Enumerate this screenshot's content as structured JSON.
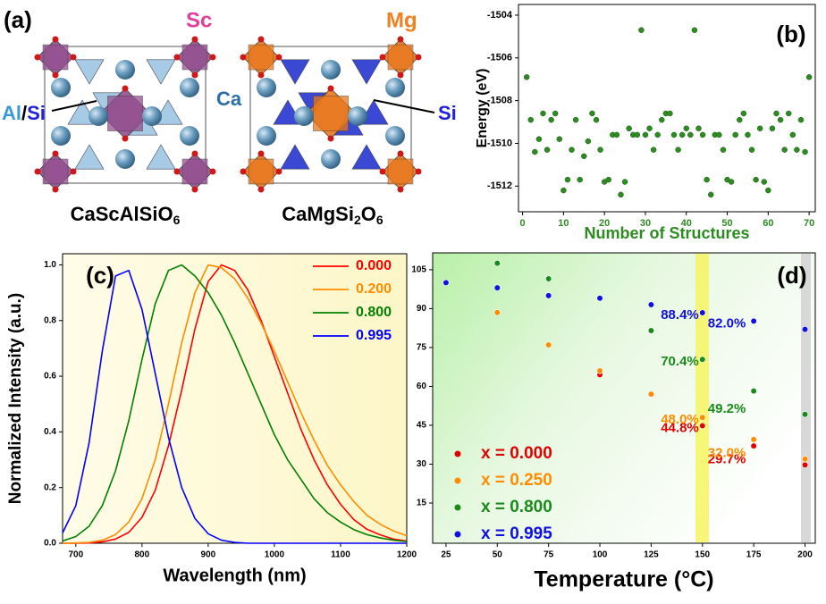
{
  "structures": {
    "label": "(a)",
    "atoms": [
      "Sc",
      "Mg",
      "Al",
      "/",
      "Si",
      "Ca",
      "Si"
    ],
    "formulas": [
      [
        "CaScAlSiO",
        "6"
      ],
      [
        "CaMgSi",
        "2",
        "O",
        "6"
      ]
    ]
  },
  "chart_data": [
    {
      "type": "scatter",
      "label": "(b)",
      "xlabel": "Number of Structures",
      "ylabel": "Energy (eV)",
      "color": "#2e8b22",
      "x": [
        1,
        2,
        3,
        4,
        5,
        6,
        7,
        8,
        9,
        10,
        11,
        12,
        13,
        14,
        15,
        16,
        17,
        18,
        19,
        20,
        21,
        22,
        23,
        24,
        25,
        26,
        27,
        28,
        29,
        30,
        31,
        32,
        33,
        34,
        35,
        36,
        37,
        38,
        39,
        40,
        41,
        42,
        43,
        44,
        45,
        46,
        47,
        48,
        49,
        50,
        51,
        52,
        53,
        54,
        55,
        56,
        57,
        58,
        59,
        60,
        61,
        62,
        63,
        64,
        65,
        66,
        67,
        68,
        69,
        70
      ],
      "values": [
        -1506.9,
        -1508.9,
        -1510.4,
        -1509.8,
        -1508.6,
        -1510.3,
        -1508.9,
        -1508.6,
        -1509.8,
        -1512.2,
        -1511.7,
        -1510.3,
        -1508.9,
        -1511.7,
        -1510.6,
        -1509.9,
        -1508.6,
        -1508.9,
        -1510.3,
        -1511.8,
        -1511.7,
        -1509.6,
        -1509.6,
        -1512.4,
        -1511.8,
        -1509.3,
        -1509.6,
        -1509.6,
        -1504.7,
        -1509.6,
        -1509.3,
        -1510.3,
        -1509.6,
        -1508.9,
        -1508.6,
        -1508.6,
        -1509.6,
        -1510.3,
        -1509.6,
        -1509.3,
        -1509.6,
        -1504.7,
        -1509.3,
        -1509.6,
        -1511.7,
        -1512.4,
        -1509.6,
        -1509.6,
        -1510.3,
        -1511.7,
        -1511.8,
        -1509.6,
        -1508.9,
        -1508.6,
        -1509.6,
        -1510.3,
        -1511.7,
        -1509.3,
        -1511.8,
        -1512.2,
        -1509.3,
        -1508.6,
        -1508.9,
        -1510.3,
        -1508.6,
        -1509.6,
        -1510.3,
        -1508.9,
        -1510.4,
        -1506.9
      ],
      "xlim": [
        -1,
        71.5
      ],
      "xticks": [
        0,
        10,
        20,
        30,
        40,
        50,
        60,
        70
      ],
      "ylim": [
        -1513.2,
        -1503.5
      ],
      "yticks": [
        -1504,
        -1506,
        -1508,
        -1510,
        -1512
      ]
    },
    {
      "type": "line",
      "label": "(c)",
      "xlabel": "Wavelength (nm)",
      "ylabel": "Normalized Intensity (a.u.)",
      "legend": "upper right",
      "x": [
        680,
        700,
        720,
        740,
        760,
        780,
        800,
        820,
        840,
        860,
        880,
        900,
        920,
        940,
        960,
        980,
        1000,
        1020,
        1040,
        1060,
        1080,
        1100,
        1120,
        1140,
        1160,
        1180,
        1200
      ],
      "series": [
        {
          "name": "0.000",
          "color": "#ff0000",
          "values": [
            0,
            0,
            0.001,
            0.005,
            0.015,
            0.039,
            0.093,
            0.19,
            0.35,
            0.55,
            0.77,
            0.94,
            1.0,
            0.98,
            0.91,
            0.8,
            0.67,
            0.54,
            0.41,
            0.3,
            0.21,
            0.14,
            0.085,
            0.05,
            0.03,
            0.015,
            0.008
          ]
        },
        {
          "name": "0.200",
          "color": "#ff8c00",
          "values": [
            0,
            0.001,
            0.003,
            0.011,
            0.031,
            0.076,
            0.16,
            0.3,
            0.5,
            0.72,
            0.9,
            1.0,
            0.99,
            0.95,
            0.88,
            0.79,
            0.69,
            0.58,
            0.47,
            0.37,
            0.28,
            0.21,
            0.15,
            0.1,
            0.068,
            0.044,
            0.027
          ]
        },
        {
          "name": "0.800",
          "color": "#008000",
          "values": [
            0.008,
            0.024,
            0.061,
            0.135,
            0.26,
            0.44,
            0.66,
            0.86,
            0.98,
            1.0,
            0.96,
            0.9,
            0.82,
            0.72,
            0.61,
            0.5,
            0.39,
            0.3,
            0.23,
            0.16,
            0.11,
            0.076,
            0.049,
            0.031,
            0.019,
            0.011,
            0.006
          ]
        },
        {
          "name": "0.995",
          "color": "#0000ff",
          "values": [
            0.037,
            0.135,
            0.36,
            0.69,
            0.96,
            0.98,
            0.84,
            0.61,
            0.38,
            0.2,
            0.089,
            0.034,
            0.011,
            0.003,
            0,
            0,
            0,
            0,
            0,
            0,
            0,
            0,
            0,
            0,
            0,
            0,
            0
          ]
        }
      ],
      "xlim": [
        680,
        1200
      ],
      "xticks": [
        700,
        800,
        900,
        1000,
        1100,
        1200
      ],
      "ylim": [
        0,
        1.04
      ],
      "yticks": [
        {
          "value": 0,
          "label": "0.0"
        },
        0.2,
        0.4,
        0.6,
        0.8,
        {
          "value": 1,
          "label": "1.0"
        }
      ]
    },
    {
      "type": "scatter",
      "label": "(d)",
      "xlabel": "Temperature (°C)",
      "legend": "lower left",
      "x": [
        25,
        50,
        75,
        100,
        125,
        150,
        175,
        200
      ],
      "series": [
        {
          "name": "x = 0.000",
          "color": "#e00000",
          "values": [
            null,
            null,
            null,
            64.5,
            null,
            44.8,
            37,
            29.7
          ],
          "value_labels": [
            null,
            null,
            null,
            null,
            null,
            "44.8%",
            null,
            "29.7%"
          ]
        },
        {
          "name": "x = 0.250",
          "color": "#ff8c00",
          "values": [
            null,
            88.5,
            76,
            66,
            57,
            48.0,
            39.5,
            32.0
          ],
          "value_labels": [
            null,
            null,
            null,
            null,
            null,
            "48.0%",
            null,
            "32.0%"
          ]
        },
        {
          "name": "x = 0.800",
          "color": "#1a8a1a",
          "values": [
            null,
            107.5,
            101.5,
            94,
            81.5,
            70.4,
            58.2,
            49.2
          ],
          "value_labels": [
            null,
            null,
            null,
            null,
            null,
            "70.4%",
            null,
            "49.2%"
          ]
        },
        {
          "name": "x = 0.995",
          "color": "#1010e0",
          "values": [
            100,
            98,
            95,
            94,
            91.5,
            88.4,
            85.2,
            82.0
          ],
          "value_labels": [
            null,
            null,
            null,
            null,
            null,
            "88.4%",
            null,
            "82.0%"
          ]
        }
      ],
      "xlim": [
        18.5,
        205
      ],
      "xticks": [
        25,
        50,
        75,
        100,
        125,
        150,
        175,
        200
      ],
      "ylim": [
        -0.5,
        111.5
      ],
      "yticks": [
        15,
        30,
        45,
        60,
        75,
        90,
        105
      ]
    }
  ]
}
